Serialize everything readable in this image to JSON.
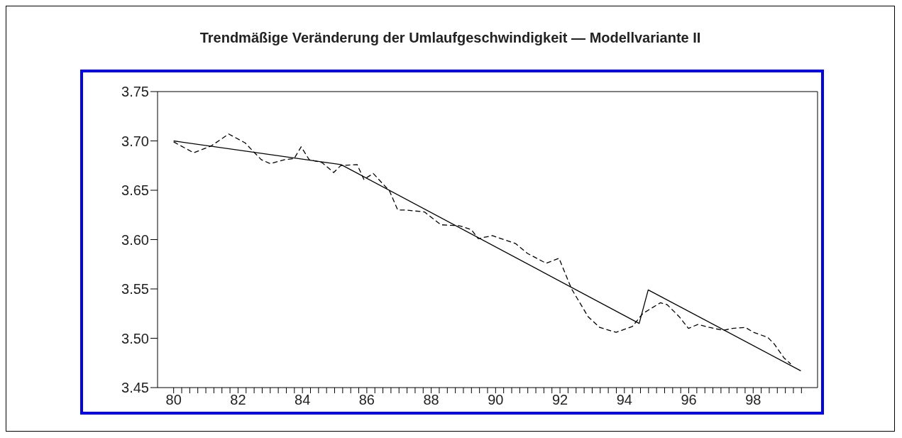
{
  "chart_data": {
    "type": "line",
    "title": "Trendmäßige Veränderung der Umlaufgeschwindigkeit — Modellvariante II",
    "xlim": [
      79.5,
      100
    ],
    "ylim": [
      3.45,
      3.75
    ],
    "xticks": [
      80,
      {
        "value": 80.25,
        "label": null
      },
      {
        "value": 80.5,
        "label": null
      },
      {
        "value": 80.75,
        "label": null
      },
      {
        "value": 81,
        "label": null
      },
      {
        "value": 81.25,
        "label": null
      },
      {
        "value": 81.5,
        "label": null
      },
      {
        "value": 81.75,
        "label": null
      },
      82,
      {
        "value": 82.25,
        "label": null
      },
      {
        "value": 82.5,
        "label": null
      },
      {
        "value": 82.75,
        "label": null
      },
      {
        "value": 83,
        "label": null
      },
      {
        "value": 83.25,
        "label": null
      },
      {
        "value": 83.5,
        "label": null
      },
      {
        "value": 83.75,
        "label": null
      },
      84,
      {
        "value": 84.25,
        "label": null
      },
      {
        "value": 84.5,
        "label": null
      },
      {
        "value": 84.75,
        "label": null
      },
      {
        "value": 85,
        "label": null
      },
      {
        "value": 85.25,
        "label": null
      },
      {
        "value": 85.5,
        "label": null
      },
      {
        "value": 85.75,
        "label": null
      },
      86,
      {
        "value": 86.25,
        "label": null
      },
      {
        "value": 86.5,
        "label": null
      },
      {
        "value": 86.75,
        "label": null
      },
      {
        "value": 87,
        "label": null
      },
      {
        "value": 87.25,
        "label": null
      },
      {
        "value": 87.5,
        "label": null
      },
      {
        "value": 87.75,
        "label": null
      },
      88,
      {
        "value": 88.25,
        "label": null
      },
      {
        "value": 88.5,
        "label": null
      },
      {
        "value": 88.75,
        "label": null
      },
      {
        "value": 89,
        "label": null
      },
      {
        "value": 89.25,
        "label": null
      },
      {
        "value": 89.5,
        "label": null
      },
      {
        "value": 89.75,
        "label": null
      },
      90,
      {
        "value": 90.25,
        "label": null
      },
      {
        "value": 90.5,
        "label": null
      },
      {
        "value": 90.75,
        "label": null
      },
      {
        "value": 91,
        "label": null
      },
      {
        "value": 91.25,
        "label": null
      },
      {
        "value": 91.5,
        "label": null
      },
      {
        "value": 91.75,
        "label": null
      },
      92,
      {
        "value": 92.25,
        "label": null
      },
      {
        "value": 92.5,
        "label": null
      },
      {
        "value": 92.75,
        "label": null
      },
      {
        "value": 93,
        "label": null
      },
      {
        "value": 93.25,
        "label": null
      },
      {
        "value": 93.5,
        "label": null
      },
      {
        "value": 93.75,
        "label": null
      },
      94,
      {
        "value": 94.25,
        "label": null
      },
      {
        "value": 94.5,
        "label": null
      },
      {
        "value": 94.75,
        "label": null
      },
      {
        "value": 95,
        "label": null
      },
      {
        "value": 95.25,
        "label": null
      },
      {
        "value": 95.5,
        "label": null
      },
      {
        "value": 95.75,
        "label": null
      },
      96,
      {
        "value": 96.25,
        "label": null
      },
      {
        "value": 96.5,
        "label": null
      },
      {
        "value": 96.75,
        "label": null
      },
      {
        "value": 97,
        "label": null
      },
      {
        "value": 97.25,
        "label": null
      },
      {
        "value": 97.5,
        "label": null
      },
      {
        "value": 97.75,
        "label": null
      },
      98,
      {
        "value": 98.25,
        "label": null
      },
      {
        "value": 98.5,
        "label": null
      },
      {
        "value": 98.75,
        "label": null
      },
      {
        "value": 99,
        "label": null
      },
      {
        "value": 99.25,
        "label": null
      },
      {
        "value": 99.5,
        "label": null
      }
    ],
    "yticks": [
      {
        "value": 3.45,
        "label": "3.45"
      },
      {
        "value": 3.5,
        "label": "3.50"
      },
      {
        "value": 3.55,
        "label": "3.55"
      },
      {
        "value": 3.6,
        "label": "3.60"
      },
      {
        "value": 3.65,
        "label": "3.65"
      },
      {
        "value": 3.7,
        "label": "3.70"
      },
      {
        "value": 3.75,
        "label": "3.75"
      }
    ],
    "marker": "none",
    "series": [
      {
        "color": "#000000",
        "line_style": "dashed",
        "x": [
          80.0,
          80.62,
          81.17,
          81.71,
          82.22,
          82.72,
          83.0,
          83.45,
          83.74,
          83.96,
          84.21,
          84.61,
          84.97,
          85.19,
          85.7,
          85.91,
          86.2,
          86.71,
          86.96,
          87.21,
          87.79,
          88.3,
          88.88,
          89.25,
          89.46,
          89.9,
          90.62,
          90.99,
          91.57,
          91.97,
          92.36,
          92.87,
          93.23,
          93.74,
          94.25,
          94.57,
          95.12,
          95.33,
          95.7,
          95.99,
          96.28,
          96.64,
          97.07,
          97.36,
          97.76,
          98.01,
          98.45,
          98.66,
          98.96,
          99.17
        ],
        "values": [
          3.699,
          3.688,
          3.695,
          3.707,
          3.698,
          3.681,
          3.677,
          3.681,
          3.682,
          3.694,
          3.681,
          3.678,
          3.668,
          3.675,
          3.676,
          3.661,
          3.667,
          3.649,
          3.63,
          3.63,
          3.628,
          3.615,
          3.614,
          3.61,
          3.601,
          3.604,
          3.596,
          3.586,
          3.576,
          3.581,
          3.55,
          3.522,
          3.511,
          3.506,
          3.512,
          3.525,
          3.536,
          3.534,
          3.522,
          3.51,
          3.514,
          3.511,
          3.508,
          3.51,
          3.511,
          3.506,
          3.501,
          3.494,
          3.48,
          3.474
        ]
      },
      {
        "color": "#000000",
        "line_style": "solid",
        "x": [
          80.0,
          85.2,
          94.46,
          94.74,
          99.48
        ],
        "values": [
          3.7,
          3.676,
          3.515,
          3.549,
          3.467
        ]
      }
    ]
  }
}
